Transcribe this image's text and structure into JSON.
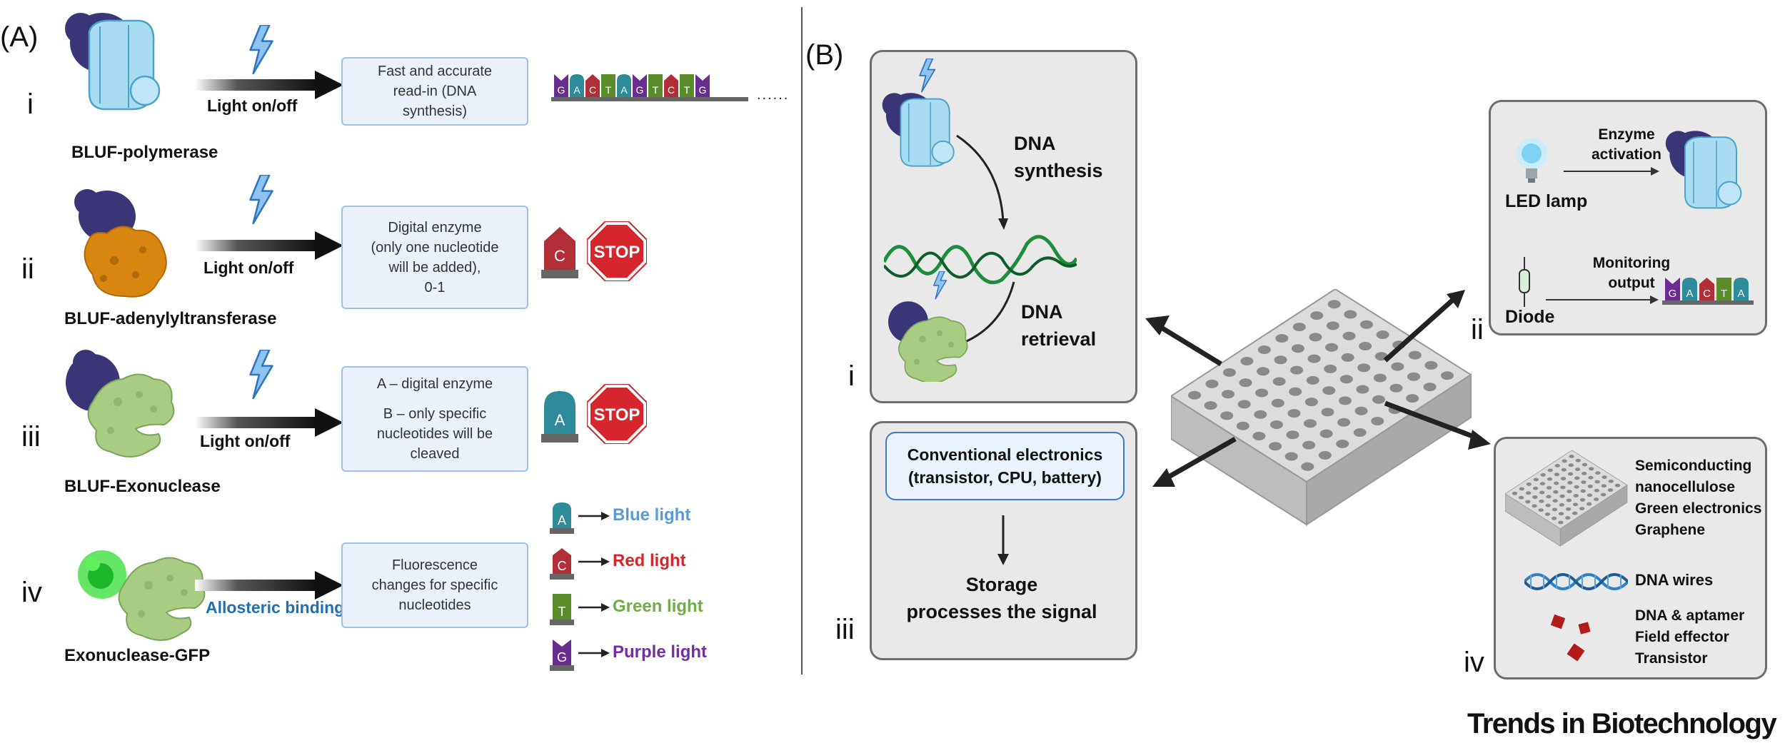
{
  "panel_a": {
    "letter": "(A)",
    "rows": [
      {
        "roman": "i",
        "enzyme": "BLUF-polymerase",
        "arrow_label": "Light on/off",
        "box_lines": [
          "Fast and accurate",
          "read-in (DNA",
          "synthesis)"
        ]
      },
      {
        "roman": "ii",
        "enzyme": "BLUF-adenylyltransferase",
        "arrow_label": "Light on/off",
        "box_lines": [
          "Digital enzyme",
          "(only one nucleotide",
          "will be added),",
          "0-1"
        ]
      },
      {
        "roman": "iii",
        "enzyme": "BLUF-Exonuclease",
        "arrow_label": "Light on/off",
        "box_lines": [
          "A – digital enzyme",
          "",
          "B – only specific",
          "nucleotides will be",
          "cleaved"
        ]
      },
      {
        "roman": "iv",
        "enzyme": "Exonuclease-GFP",
        "arrow_label": "Allosteric binding",
        "box_lines": [
          "Fluorescence",
          "changes for specific",
          "nucleotides"
        ]
      }
    ],
    "sequence_letters": [
      "G",
      "A",
      "C",
      "T",
      "A",
      "G",
      "T",
      "C",
      "T",
      "G"
    ],
    "sequence_ellipsis": "......",
    "nucleotide_ii": "C",
    "nucleotide_iii": "A",
    "stop_text": "STOP",
    "fluorescence": [
      {
        "letter": "A",
        "label": "Blue light",
        "color": "#5b9bd5"
      },
      {
        "letter": "C",
        "label": "Red light",
        "color": "#d7262b"
      },
      {
        "letter": "T",
        "label": "Green light",
        "color": "#70ad47"
      },
      {
        "letter": "G",
        "label": "Purple light",
        "color": "#7030a0"
      }
    ]
  },
  "panel_b": {
    "letter": "(B)",
    "roman_i": "i",
    "roman_ii": "ii",
    "roman_iii": "iii",
    "roman_iv": "iv",
    "dna_synthesis": [
      "DNA",
      "synthesis"
    ],
    "dna_retrieval": [
      "DNA",
      "retrieval"
    ],
    "conventional": [
      "Conventional electronics",
      "(transistor, CPU, battery)"
    ],
    "storage": [
      "Storage",
      "processes the signal"
    ],
    "enzyme_activation": [
      "Enzyme",
      "activation"
    ],
    "led_lamp": "LED lamp",
    "monitoring": [
      "Monitoring",
      "output"
    ],
    "diode": "Diode",
    "gacta": [
      "G",
      "A",
      "C",
      "T",
      "A"
    ],
    "materials": [
      "Semiconducting",
      "nanocellulose",
      "Green electronics",
      "Graphene"
    ],
    "dna_wires": "DNA wires",
    "aptamer": [
      "DNA & aptamer",
      "Field effector",
      "Transistor"
    ]
  },
  "colors": {
    "A": "#2e8b99",
    "C": "#b32f37",
    "T": "#5b8c2a",
    "G": "#6a2c91",
    "blue_light": "#5b9bd5",
    "red_light": "#d7262b",
    "green_light": "#70ad47",
    "purple_light": "#7030a0",
    "info_fill": "#eaf1fb",
    "panel_fill": "#e9e9e9"
  },
  "journal": "Trends in Biotechnology"
}
